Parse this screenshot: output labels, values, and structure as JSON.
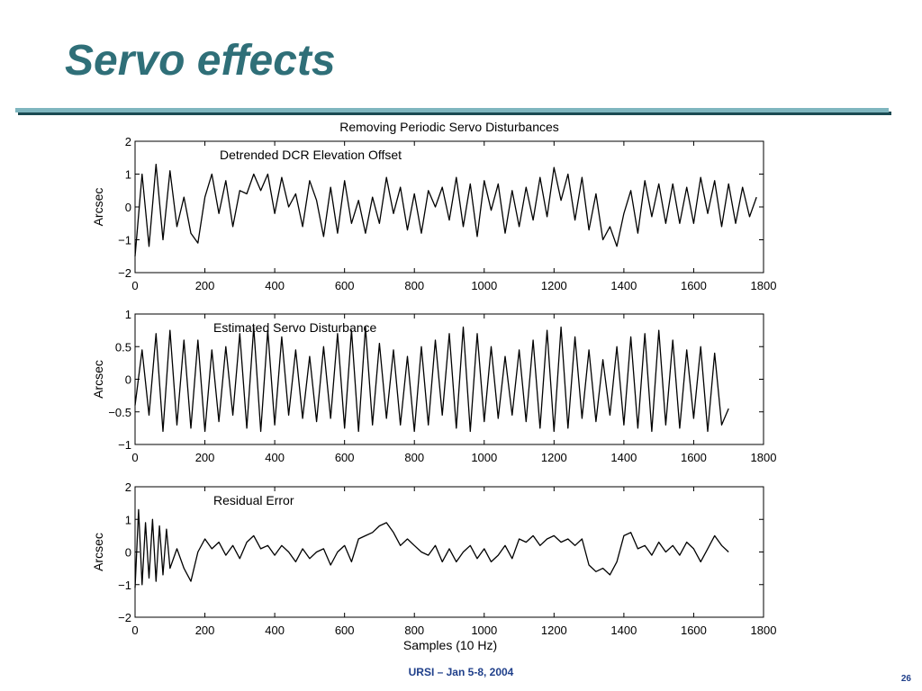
{
  "slide": {
    "title": "Servo effects",
    "footer": "URSI – Jan 5-8, 2004",
    "page_number": "26",
    "title_color": "#2f6f78",
    "accent_color": "#7fb6bf",
    "footer_color": "#1f3f8a"
  },
  "chart_data": [
    {
      "type": "line",
      "title": "Removing Periodic Servo Disturbances",
      "annotation": "Detrended DCR Elevation Offset",
      "xlabel": "",
      "ylabel": "Arcsec",
      "xlim": [
        0,
        1800
      ],
      "ylim": [
        -2,
        2
      ],
      "xticks": [
        0,
        200,
        400,
        600,
        800,
        1000,
        1200,
        1400,
        1600,
        1800
      ],
      "yticks": [
        -2,
        -1,
        0,
        1,
        2
      ],
      "ytick_labels": [
        "−2",
        "−1",
        "0",
        "1",
        "2"
      ],
      "grid": false,
      "series": [
        {
          "x": [
            0,
            20,
            40,
            60,
            80,
            100,
            120,
            140,
            160,
            180,
            200,
            220,
            240,
            260,
            280,
            300,
            320,
            340,
            360,
            380,
            400,
            420,
            440,
            460,
            480,
            500,
            520,
            540,
            560,
            580,
            600,
            620,
            640,
            660,
            680,
            700,
            720,
            740,
            760,
            780,
            800,
            820,
            840,
            860,
            880,
            900,
            920,
            940,
            960,
            980,
            1000,
            1020,
            1040,
            1060,
            1080,
            1100,
            1120,
            1140,
            1160,
            1180,
            1200,
            1220,
            1240,
            1260,
            1280,
            1300,
            1320,
            1340,
            1360,
            1380,
            1400,
            1420,
            1440,
            1460,
            1480,
            1500,
            1520,
            1540,
            1560,
            1580,
            1600,
            1620,
            1640,
            1660,
            1680,
            1700,
            1720,
            1740,
            1760,
            1780
          ],
          "y": [
            -1.5,
            1.0,
            -1.2,
            1.3,
            -1.0,
            1.1,
            -0.6,
            0.3,
            -0.8,
            -1.1,
            0.3,
            1.0,
            -0.2,
            0.8,
            -0.6,
            0.5,
            0.4,
            1.0,
            0.5,
            1.0,
            -0.2,
            0.9,
            0.0,
            0.4,
            -0.6,
            0.8,
            0.2,
            -0.9,
            0.6,
            -0.8,
            0.8,
            -0.5,
            0.2,
            -0.8,
            0.3,
            -0.5,
            0.9,
            -0.2,
            0.6,
            -0.7,
            0.4,
            -0.8,
            0.5,
            0.0,
            0.6,
            -0.4,
            0.9,
            -0.6,
            0.7,
            -0.9,
            0.8,
            -0.1,
            0.7,
            -0.8,
            0.5,
            -0.6,
            0.6,
            -0.4,
            0.9,
            -0.3,
            1.2,
            0.2,
            1.0,
            -0.4,
            0.9,
            -0.7,
            0.4,
            -1.0,
            -0.6,
            -1.2,
            -0.2,
            0.5,
            -0.8,
            0.8,
            -0.3,
            0.7,
            -0.5,
            0.7,
            -0.5,
            0.6,
            -0.5,
            0.9,
            -0.2,
            0.8,
            -0.6,
            0.7,
            -0.5,
            0.6,
            -0.3,
            0.3
          ]
        }
      ]
    },
    {
      "type": "line",
      "title": "",
      "annotation": "Estimated Servo Disturbance",
      "xlabel": "",
      "ylabel": "Arcsec",
      "xlim": [
        0,
        1800
      ],
      "ylim": [
        -1,
        1
      ],
      "xticks": [
        0,
        200,
        400,
        600,
        800,
        1000,
        1200,
        1400,
        1600,
        1800
      ],
      "yticks": [
        -1,
        -0.5,
        0,
        0.5,
        1
      ],
      "ytick_labels": [
        "−1",
        "−0.5",
        "0",
        "0.5",
        "1"
      ],
      "grid": false,
      "series": [
        {
          "x": [
            0,
            20,
            40,
            60,
            80,
            100,
            120,
            140,
            160,
            180,
            200,
            220,
            240,
            260,
            280,
            300,
            320,
            340,
            360,
            380,
            400,
            420,
            440,
            460,
            480,
            500,
            520,
            540,
            560,
            580,
            600,
            620,
            640,
            660,
            680,
            700,
            720,
            740,
            760,
            780,
            800,
            820,
            840,
            860,
            880,
            900,
            920,
            940,
            960,
            980,
            1000,
            1020,
            1040,
            1060,
            1080,
            1100,
            1120,
            1140,
            1160,
            1180,
            1200,
            1220,
            1240,
            1260,
            1280,
            1300,
            1320,
            1340,
            1360,
            1380,
            1400,
            1420,
            1440,
            1460,
            1480,
            1500,
            1520,
            1540,
            1560,
            1580,
            1600,
            1620,
            1640,
            1660,
            1680,
            1700
          ],
          "y": [
            -0.4,
            0.45,
            -0.55,
            0.7,
            -0.8,
            0.75,
            -0.7,
            0.6,
            -0.75,
            0.6,
            -0.8,
            0.45,
            -0.65,
            0.5,
            -0.55,
            0.7,
            -0.75,
            0.8,
            -0.8,
            0.75,
            -0.7,
            0.65,
            -0.55,
            0.45,
            -0.6,
            0.35,
            -0.65,
            0.5,
            -0.6,
            0.7,
            -0.75,
            0.75,
            -0.8,
            0.8,
            -0.7,
            0.55,
            -0.6,
            0.45,
            -0.7,
            0.35,
            -0.8,
            0.5,
            -0.7,
            0.6,
            -0.55,
            0.7,
            -0.75,
            0.8,
            -0.8,
            0.7,
            -0.65,
            0.5,
            -0.6,
            0.35,
            -0.55,
            0.45,
            -0.65,
            0.6,
            -0.75,
            0.75,
            -0.8,
            0.8,
            -0.75,
            0.65,
            -0.6,
            0.45,
            -0.65,
            0.3,
            -0.55,
            0.5,
            -0.7,
            0.65,
            -0.75,
            0.7,
            -0.8,
            0.75,
            -0.7,
            0.6,
            -0.75,
            0.45,
            -0.6,
            0.5,
            -0.8,
            0.4,
            -0.7,
            -0.45
          ]
        }
      ]
    },
    {
      "type": "line",
      "title": "",
      "annotation": "Residual Error",
      "xlabel": "Samples (10 Hz)",
      "ylabel": "Arcsec",
      "xlim": [
        0,
        1800
      ],
      "ylim": [
        -2,
        2
      ],
      "xticks": [
        0,
        200,
        400,
        600,
        800,
        1000,
        1200,
        1400,
        1600,
        1800
      ],
      "yticks": [
        -2,
        -1,
        0,
        1,
        2
      ],
      "ytick_labels": [
        "−2",
        "−1",
        "0",
        "1",
        "2"
      ],
      "grid": false,
      "series": [
        {
          "x": [
            0,
            10,
            20,
            30,
            40,
            50,
            60,
            70,
            80,
            90,
            100,
            120,
            140,
            160,
            180,
            200,
            220,
            240,
            260,
            280,
            300,
            320,
            340,
            360,
            380,
            400,
            420,
            440,
            460,
            480,
            500,
            520,
            540,
            560,
            580,
            600,
            620,
            640,
            660,
            680,
            700,
            720,
            740,
            760,
            780,
            800,
            820,
            840,
            860,
            880,
            900,
            920,
            940,
            960,
            980,
            1000,
            1020,
            1040,
            1060,
            1080,
            1100,
            1120,
            1140,
            1160,
            1180,
            1200,
            1220,
            1240,
            1260,
            1280,
            1300,
            1320,
            1340,
            1360,
            1380,
            1400,
            1420,
            1440,
            1460,
            1480,
            1500,
            1520,
            1540,
            1560,
            1580,
            1600,
            1620,
            1640,
            1660,
            1680,
            1700
          ],
          "y": [
            -1.1,
            1.3,
            -1.0,
            0.9,
            -0.8,
            1.0,
            -0.9,
            0.8,
            -0.7,
            0.7,
            -0.5,
            0.1,
            -0.5,
            -0.9,
            0.0,
            0.4,
            0.1,
            0.3,
            -0.1,
            0.2,
            -0.2,
            0.3,
            0.5,
            0.1,
            0.2,
            -0.1,
            0.2,
            0.0,
            -0.3,
            0.1,
            -0.2,
            0.0,
            0.1,
            -0.4,
            0.0,
            0.2,
            -0.3,
            0.4,
            0.5,
            0.6,
            0.8,
            0.9,
            0.6,
            0.2,
            0.4,
            0.2,
            0.0,
            -0.1,
            0.2,
            -0.3,
            0.1,
            -0.3,
            0.0,
            0.2,
            -0.2,
            0.1,
            -0.3,
            -0.1,
            0.2,
            -0.2,
            0.4,
            0.3,
            0.5,
            0.2,
            0.4,
            0.5,
            0.3,
            0.4,
            0.2,
            0.4,
            -0.4,
            -0.6,
            -0.5,
            -0.7,
            -0.3,
            0.5,
            0.6,
            0.1,
            0.2,
            -0.1,
            0.3,
            0.0,
            0.2,
            -0.1,
            0.3,
            0.1,
            -0.3,
            0.1,
            0.5,
            0.2,
            0.0
          ]
        }
      ]
    }
  ]
}
